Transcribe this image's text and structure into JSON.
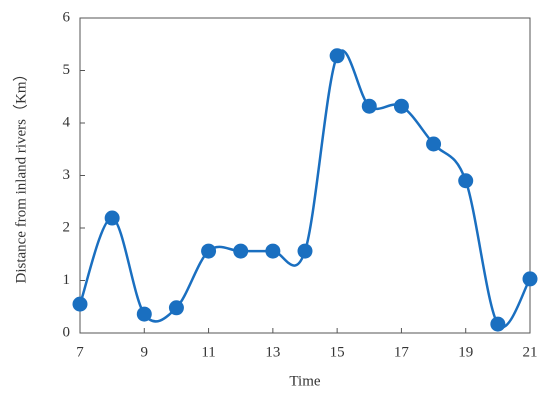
{
  "chart_data": {
    "type": "line",
    "x_label": "Time",
    "y_label": "Distance from inland rivers（Km）",
    "x": [
      7,
      8,
      9,
      10,
      11,
      12,
      13,
      14,
      15,
      16,
      17,
      18,
      19,
      20,
      21
    ],
    "series": [
      {
        "color": "#1a6fc0",
        "values": [
          0.55,
          2.19,
          0.36,
          0.48,
          1.56,
          1.56,
          1.56,
          1.56,
          5.28,
          4.32,
          4.32,
          3.6,
          2.9,
          0.17,
          1.03
        ]
      }
    ],
    "xlim": [
      7,
      21
    ],
    "xticks": [
      7,
      9,
      11,
      13,
      15,
      17,
      19,
      21
    ],
    "ylim": [
      0,
      6
    ],
    "yticks": [
      0,
      1,
      2,
      3,
      4,
      5,
      6
    ],
    "smooth": true,
    "markers": true
  }
}
